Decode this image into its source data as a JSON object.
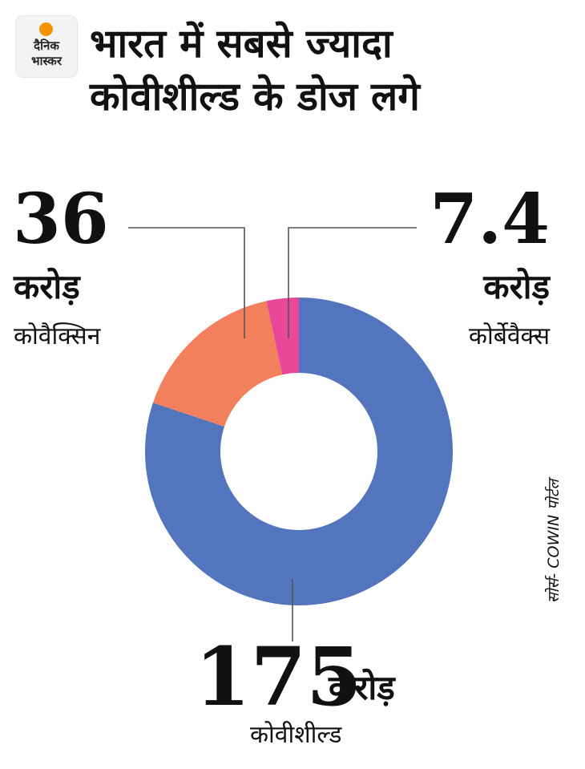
{
  "brand": {
    "line1": "दैनिक",
    "line2": "भास्कर"
  },
  "title": {
    "line1": "भारत में सबसे ज्यादा",
    "line2": "कोवीशील्ड के डोज लगे"
  },
  "labels": {
    "covaxin": {
      "value": "36",
      "unit": "करोड़",
      "name": "कोवैक्सिन"
    },
    "corbevax": {
      "value": "7.4",
      "unit": "करोड़",
      "name": "कोर्बेवैक्स"
    },
    "covishield": {
      "value": "175",
      "unit": "करोड़",
      "name": "कोवीशील्ड"
    }
  },
  "source": "सोर्स- COWIN पोर्टल",
  "chart_data": {
    "type": "pie",
    "style": "donut",
    "unit": "करोड़",
    "categories": [
      "कोवीशील्ड",
      "कोवैक्सिन",
      "कोर्बेवैक्स"
    ],
    "values": [
      175,
      36,
      7.4
    ],
    "colors": [
      "#5275be",
      "#f3805d",
      "#e8479a"
    ]
  }
}
